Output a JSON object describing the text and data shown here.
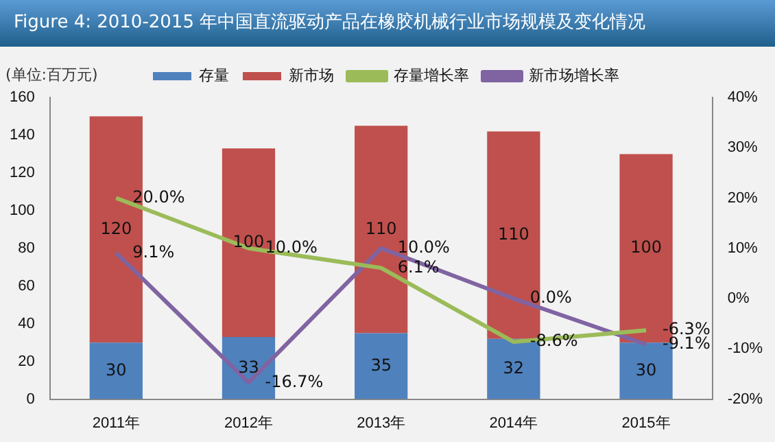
{
  "chart_data": {
    "type": "bar",
    "title": "Figure 4:  2010-2015 年中国直流驱动产品在橡胶机械行业市场规模及变化情况",
    "ylabel": "(单位:百万元)",
    "categories": [
      "2011年",
      "2012年",
      "2013年",
      "2014年",
      "2015年"
    ],
    "stacked": true,
    "ylim": [
      0,
      160
    ],
    "yticks": [
      0,
      20,
      40,
      60,
      80,
      100,
      120,
      140,
      160
    ],
    "y2lim": [
      -20,
      40
    ],
    "y2ticks": [
      {
        "value": -20,
        "label": "-20%"
      },
      {
        "value": -10,
        "label": "-10%"
      },
      {
        "value": 0,
        "label": "0%"
      },
      {
        "value": 10,
        "label": "10%"
      },
      {
        "value": 20,
        "label": "20%"
      },
      {
        "value": 30,
        "label": "30%"
      },
      {
        "value": 40,
        "label": "40%"
      }
    ],
    "legend": "top",
    "grid": false,
    "series": [
      {
        "name": "存量",
        "color": "#4f81bd",
        "values": [
          30,
          33,
          35,
          32,
          30
        ],
        "value_labels": [
          "30",
          "33",
          "35",
          "32",
          "30"
        ]
      },
      {
        "name": "新市场",
        "color": "#c0504d",
        "values": [
          120,
          100,
          110,
          110,
          100
        ],
        "value_labels": [
          "120",
          "100",
          "110",
          "110",
          "100"
        ]
      },
      {
        "name": "存量增长率",
        "type": "line",
        "axis": "y2",
        "color": "#9bbb59",
        "values": [
          20.0,
          10.0,
          6.1,
          -8.6,
          -6.3
        ],
        "value_labels": [
          "20.0%",
          "10.0%",
          "6.1%",
          "-8.6%",
          "-6.3%"
        ]
      },
      {
        "name": "新市场增长率",
        "type": "line",
        "axis": "y2",
        "color": "#8064a2",
        "values": [
          9.1,
          -16.7,
          10.0,
          0.0,
          -9.1
        ],
        "value_labels": [
          "9.1%",
          "-16.7%",
          "10.0%",
          "0.0%",
          "-9.1%"
        ]
      }
    ]
  }
}
